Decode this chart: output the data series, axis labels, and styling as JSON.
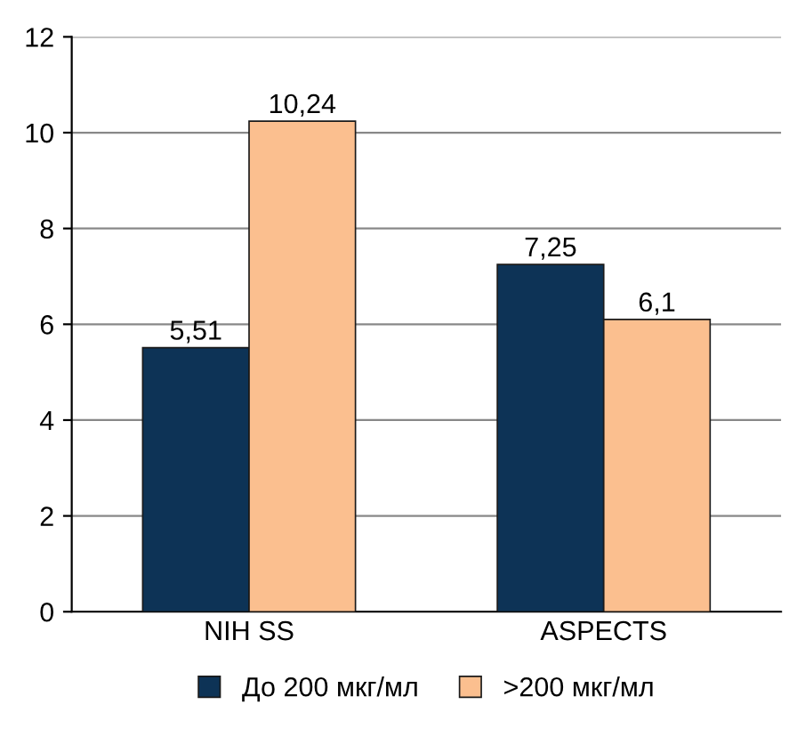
{
  "chart_data": {
    "type": "bar",
    "categories": [
      "NIH SS",
      "ASPECTS"
    ],
    "series": [
      {
        "name": "До 200 мкг/мл",
        "color": "#0d3356",
        "values": [
          5.51,
          7.25
        ],
        "value_labels": [
          "5,51",
          "7,25"
        ]
      },
      {
        "name": ">200 мкг/мл",
        "color": "#fbbf8f",
        "values": [
          10.24,
          6.1
        ],
        "value_labels": [
          "10,24",
          "6,1"
        ]
      }
    ],
    "ylim": [
      0,
      12
    ],
    "yticks": [
      0,
      2,
      4,
      6,
      8,
      10,
      12
    ],
    "grid": "y",
    "legend": "bottom"
  }
}
